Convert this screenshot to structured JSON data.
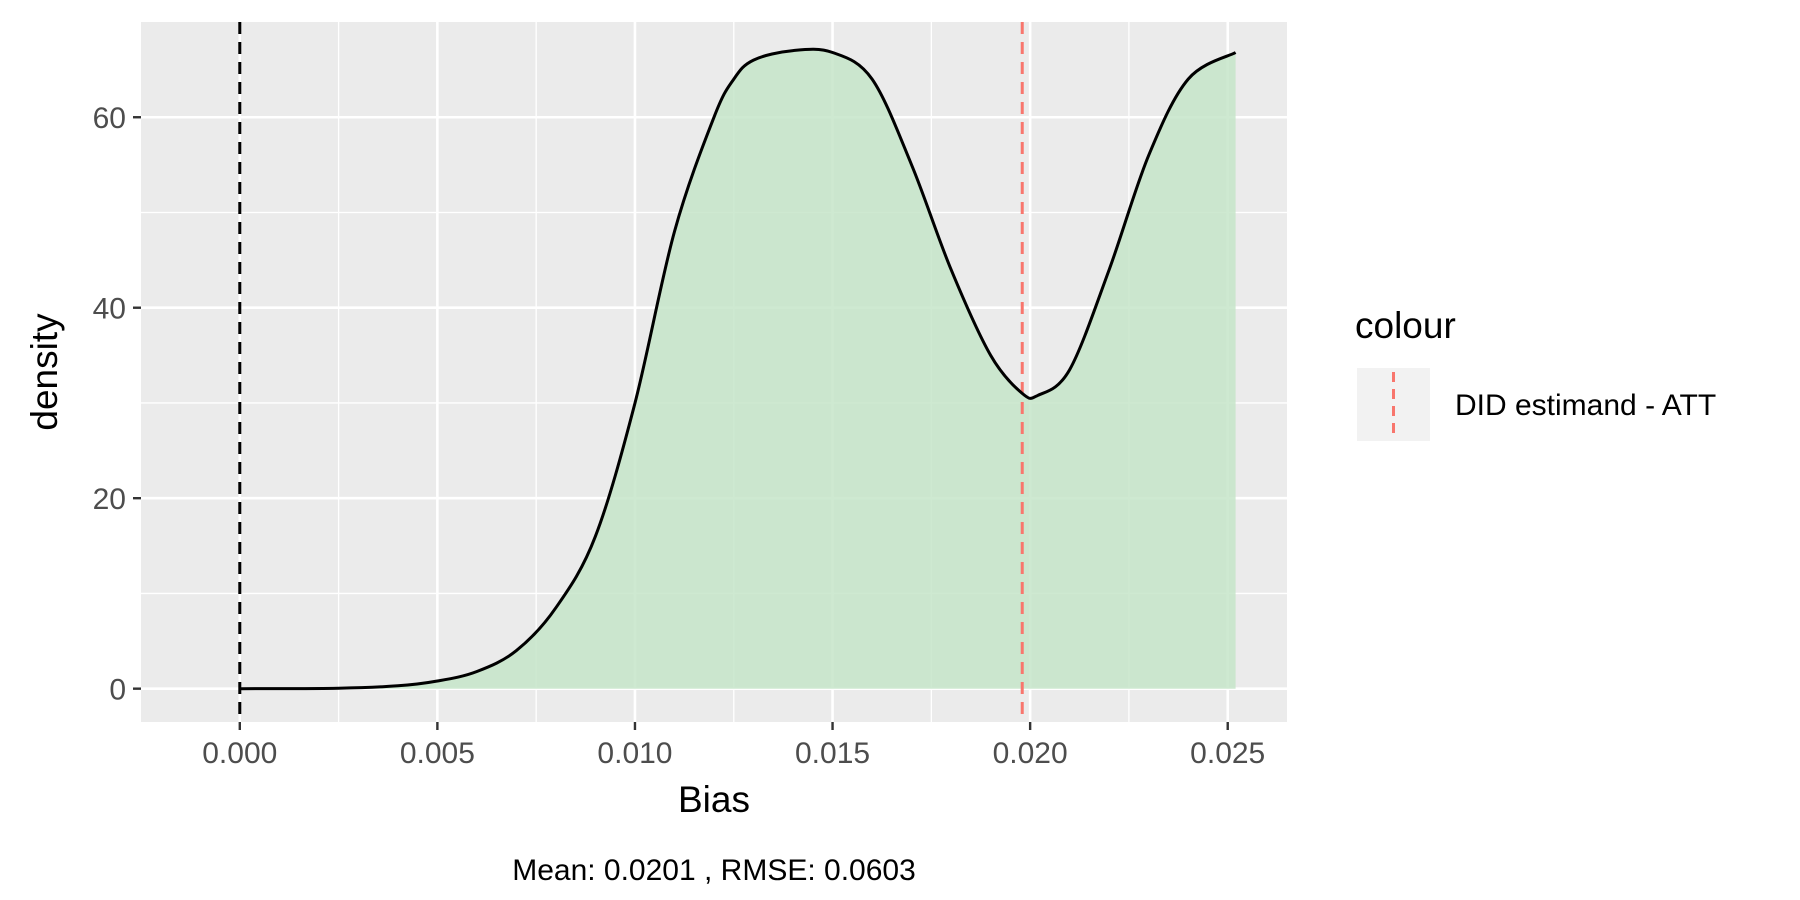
{
  "chart_data": {
    "type": "area",
    "title": "",
    "xlabel": "Bias",
    "ylabel": "density",
    "caption": "Mean: 0.0201 , RMSE: 0.0603",
    "xlim": [
      -0.0025,
      0.0265
    ],
    "ylim": [
      -3.5,
      70
    ],
    "x_ticks": [
      0.0,
      0.005,
      0.01,
      0.015,
      0.02,
      0.025
    ],
    "x_tick_labels": [
      "0.000",
      "0.005",
      "0.010",
      "0.015",
      "0.020",
      "0.025"
    ],
    "y_ticks": [
      0,
      20,
      40,
      60
    ],
    "y_tick_labels": [
      "0",
      "20",
      "40",
      "60"
    ],
    "grid": true,
    "series": [
      {
        "type": "density-area",
        "x": [
          0.0,
          0.0025,
          0.004,
          0.005,
          0.006,
          0.007,
          0.008,
          0.009,
          0.01,
          0.011,
          0.012,
          0.0125,
          0.013,
          0.014,
          0.015,
          0.016,
          0.017,
          0.018,
          0.019,
          0.0198,
          0.0202,
          0.021,
          0.022,
          0.023,
          0.024,
          0.0252
        ],
        "values": [
          0.0,
          0.05,
          0.3,
          0.8,
          1.8,
          4.0,
          8.5,
          16.0,
          30.0,
          48.0,
          60.0,
          64.0,
          66.0,
          67.0,
          66.8,
          64.0,
          55.0,
          44.0,
          35.0,
          31.0,
          30.8,
          33.5,
          44.0,
          56.0,
          64.0,
          66.8
        ],
        "fill": "#c6e5c9",
        "line_color": "#000000"
      }
    ],
    "reference_lines": [
      {
        "x": 0.0,
        "color": "#000000",
        "style": "dashed",
        "in_legend": false
      },
      {
        "x": 0.0198,
        "color": "#f8766d",
        "style": "dashed",
        "in_legend": true
      }
    ],
    "legend": {
      "title": "colour",
      "position": "right",
      "entries": [
        {
          "label": "DID estimand - ATT",
          "color": "#f8766d",
          "style": "dashed"
        }
      ]
    },
    "colors": {
      "panel": "#ebebeb",
      "grid": "#ffffff",
      "fill": "#c6e5c9",
      "line": "#000000",
      "att": "#f8766d"
    }
  }
}
